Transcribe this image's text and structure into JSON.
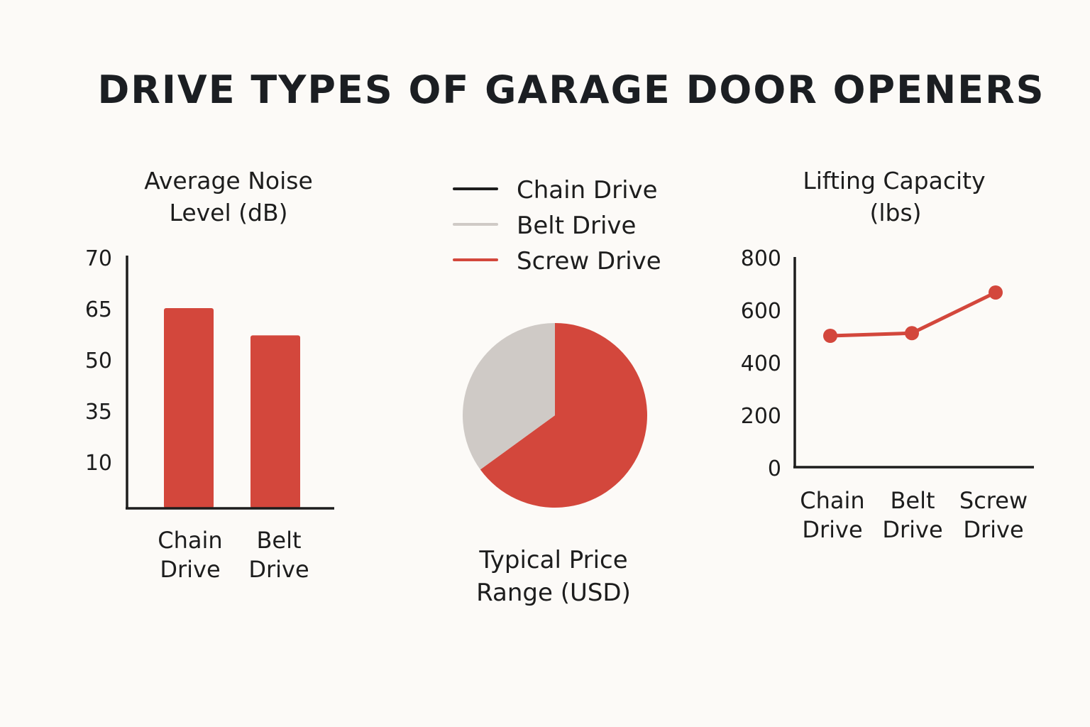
{
  "title": "DRIVE TYPES OF GARAGE DOOR OPENERS",
  "colors": {
    "chain": "#1d1d1d",
    "belt": "#cfcac6",
    "screw": "#d3473c",
    "axis": "#1d1d1d",
    "background": "#fcfaf7"
  },
  "chart_data": [
    {
      "type": "bar",
      "title_lines": [
        "Average Noise",
        "Level (dB)"
      ],
      "categories": [
        [
          "Chain",
          "Drive"
        ],
        [
          "Belt",
          "Drive"
        ]
      ],
      "y_ticks": [
        "70",
        "65",
        "50",
        "35",
        "10"
      ],
      "values": [
        65,
        57
      ],
      "grid": false
    },
    {
      "type": "pie",
      "title_lines": [
        "Typical Price",
        "Range (USD)"
      ],
      "legend": [
        "Chain Drive",
        "Belt Drive",
        "Screw Drive"
      ],
      "legend_placement": "top",
      "slices": [
        {
          "name": "Belt Drive",
          "value": 35
        },
        {
          "name": "Screw Drive",
          "value": 65
        }
      ]
    },
    {
      "type": "line",
      "title_lines": [
        "Lifting Capacity",
        "(lbs)"
      ],
      "categories": [
        [
          "Chain",
          "Drive"
        ],
        [
          "Belt",
          "Drive"
        ],
        [
          "Screw",
          "Drive"
        ]
      ],
      "y_ticks": [
        "800",
        "600",
        "400",
        "200",
        "0"
      ],
      "ylim": [
        0,
        800
      ],
      "series": [
        {
          "values": [
            500,
            510,
            665
          ]
        }
      ],
      "grid": false
    }
  ]
}
